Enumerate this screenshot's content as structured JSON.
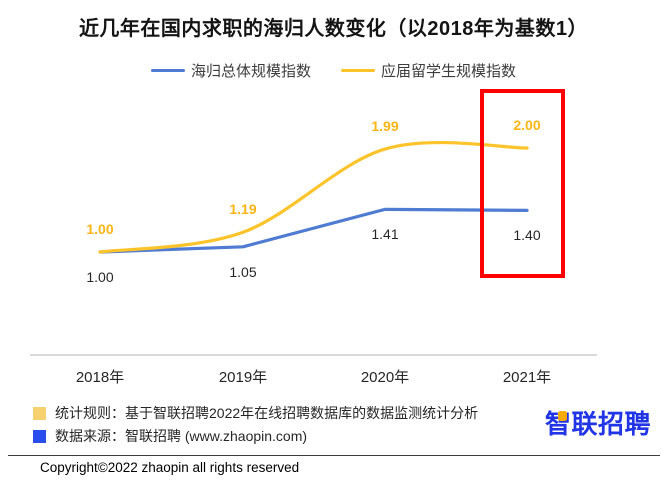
{
  "title": "近几年在国内求职的海归人数变化（以2018年为基数1）",
  "legend": [
    {
      "label": "海归总体规模指数",
      "color": "#4f7bd2"
    },
    {
      "label": "应届留学生规模指数",
      "color": "#fdc32a"
    }
  ],
  "chart_data": {
    "type": "line",
    "categories": [
      "2018年",
      "2019年",
      "2020年",
      "2021年"
    ],
    "series": [
      {
        "name": "海归总体规模指数",
        "color": "#4f7bd2",
        "values": [
          1.0,
          1.05,
          1.41,
          1.4
        ],
        "smooth": false,
        "label_position": "below",
        "label_color": "#262626",
        "label_bold": false
      },
      {
        "name": "应届留学生规模指数",
        "color": "#fdc32a",
        "values": [
          1.0,
          1.19,
          1.99,
          2.0
        ],
        "smooth": true,
        "label_position": "above",
        "label_color": "#fcb515",
        "label_bold": true
      }
    ],
    "title": "近几年在国内求职的海归人数变化（以2018年为基数1）",
    "xlabel": "",
    "ylabel": "",
    "ylim": [
      0,
      2.5
    ],
    "grid": false,
    "legend_position": "top",
    "highlight": {
      "category": "2021年",
      "color": "#ff0000"
    }
  },
  "footer": {
    "note1": "统计规则：基于智联招聘2022年在线招聘数据库的数据监测统计分析",
    "note1_color": "#f7d070",
    "note2": "数据来源：智联招聘 (www.zhaopin.com)",
    "note2_color": "#2a4dee",
    "logo_text": "智联招聘",
    "logo_color": "#2135e6",
    "logo_accent_color": "#ffaa00",
    "copyright": "Copyright©2022 zhaopin all rights reserved"
  }
}
